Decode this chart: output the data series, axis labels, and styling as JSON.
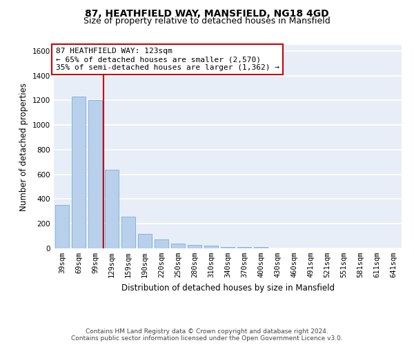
{
  "title_line1": "87, HEATHFIELD WAY, MANSFIELD, NG18 4GD",
  "title_line2": "Size of property relative to detached houses in Mansfield",
  "xlabel": "Distribution of detached houses by size in Mansfield",
  "ylabel": "Number of detached properties",
  "footer": "Contains HM Land Registry data © Crown copyright and database right 2024.\nContains public sector information licensed under the Open Government Licence v3.0.",
  "categories": [
    "39sqm",
    "69sqm",
    "99sqm",
    "129sqm",
    "159sqm",
    "190sqm",
    "220sqm",
    "250sqm",
    "280sqm",
    "310sqm",
    "340sqm",
    "370sqm",
    "400sqm",
    "430sqm",
    "460sqm",
    "491sqm",
    "521sqm",
    "551sqm",
    "581sqm",
    "611sqm",
    "641sqm"
  ],
  "values": [
    350,
    1230,
    1200,
    640,
    255,
    120,
    75,
    40,
    30,
    20,
    10,
    10,
    10,
    0,
    0,
    0,
    0,
    0,
    0,
    0,
    0
  ],
  "bar_color": "#b8d0eb",
  "bar_edgecolor": "#7aaedb",
  "vline_x": 2.5,
  "vline_color": "#cc0000",
  "annotation_text": "87 HEATHFIELD WAY: 123sqm\n← 65% of detached houses are smaller (2,570)\n35% of semi-detached houses are larger (1,362) →",
  "annotation_box_facecolor": "#ffffff",
  "annotation_box_edgecolor": "#cc0000",
  "ylim": [
    0,
    1650
  ],
  "yticks": [
    0,
    200,
    400,
    600,
    800,
    1000,
    1200,
    1400,
    1600
  ],
  "background_color": "#e8eef7",
  "grid_color": "#ffffff",
  "title_fontsize": 10,
  "subtitle_fontsize": 9,
  "axis_label_fontsize": 8.5,
  "tick_fontsize": 7.5,
  "annotation_fontsize": 8,
  "footer_fontsize": 6.5
}
